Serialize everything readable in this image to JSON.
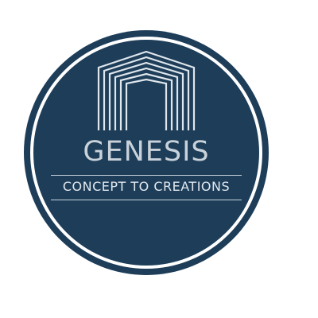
{
  "logo": {
    "brand_name": "GENESIS",
    "tagline": "CONCEPT TO CREATIONS",
    "emblem_icon": "nested-arch-house-icon"
  },
  "colors": {
    "badge_background": "#1d3d59",
    "ring": "#ffffff",
    "text": "#c9d2da",
    "page_background": "#ffffff"
  }
}
